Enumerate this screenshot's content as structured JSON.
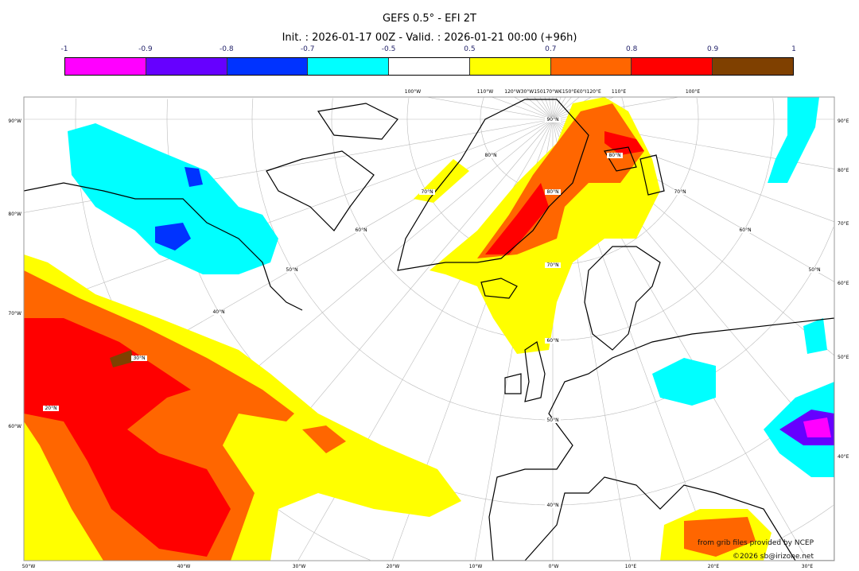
{
  "title": "GEFS 0.5° - EFI 2T",
  "subtitle": "Init. : 2026-01-17 00Z - Valid. : 2026-01-21 00:00 (+96h)",
  "colorbar": {
    "ticks": [
      "-1",
      "-0.9",
      "-0.8",
      "-0.7",
      "-0.5",
      "0.5",
      "0.7",
      "0.8",
      "0.9",
      "1"
    ],
    "colors": [
      "#ff00ff",
      "#6600ff",
      "#0033ff",
      "#00ffff",
      "#ffffff",
      "#ffff00",
      "#ff6600",
      "#ff0000",
      "#7f4000"
    ]
  },
  "map": {
    "left_labels": [
      "90°W",
      "80°W",
      "70°W",
      "60°W"
    ],
    "right_labels": [
      "90°E",
      "80°E",
      "70°E",
      "60°E",
      "50°E",
      "40°E"
    ],
    "bottom_labels": [
      "50°W",
      "40°W",
      "30°W",
      "20°W",
      "10°W",
      "0°W",
      "10°E",
      "20°E",
      "30°E"
    ],
    "top_labels": [
      "100°W",
      "110°W",
      "120°W30°W150170°W€150°E€0°I120°E",
      "110°E",
      "100°E"
    ],
    "lat_labels_center": [
      "90°N",
      "80°N",
      "70°N",
      "60°N",
      "50°N",
      "40°N"
    ],
    "lat_labels_left": [
      "80°N",
      "70°N",
      "60°N",
      "50°N",
      "40°N",
      "30°N",
      "20°N"
    ],
    "lat_labels_right": [
      "80°N",
      "70°N",
      "60°N",
      "50°N"
    ]
  },
  "credits": {
    "line1": "from grib files provided by NCEP",
    "line2": "©2026 sb@irizone.net"
  }
}
